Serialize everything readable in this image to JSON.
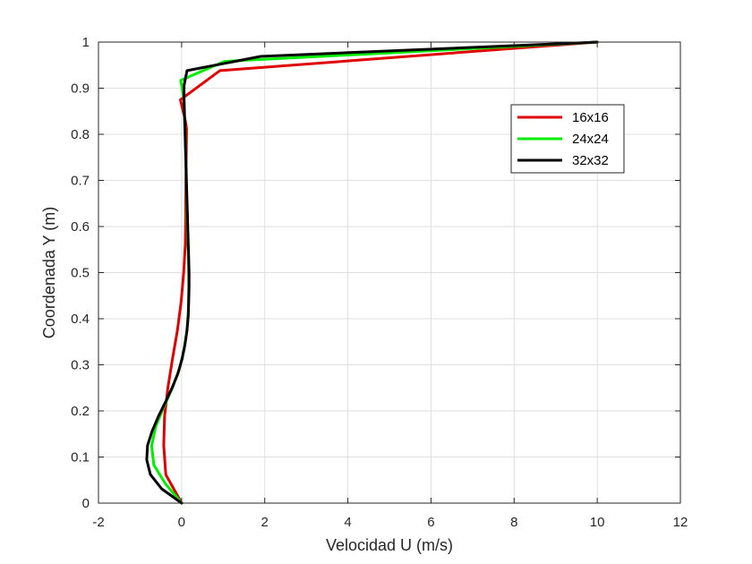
{
  "chart_data": {
    "type": "line",
    "title": "",
    "xlabel": "Velocidad U (m/s)",
    "ylabel": "Coordenada Y (m)",
    "xlim": [
      -2,
      12
    ],
    "ylim": [
      0,
      1
    ],
    "xticks": [
      -2,
      0,
      2,
      4,
      6,
      8,
      10,
      12
    ],
    "yticks": [
      0,
      0.1,
      0.2,
      0.3,
      0.4,
      0.5,
      0.6,
      0.7,
      0.8,
      0.9,
      1
    ],
    "xtick_labels": [
      "-2",
      "0",
      "2",
      "4",
      "6",
      "8",
      "10",
      "12"
    ],
    "ytick_labels": [
      "0",
      "0.1",
      "0.2",
      "0.3",
      "0.4",
      "0.5",
      "0.6",
      "0.7",
      "0.8",
      "0.9",
      "1"
    ],
    "grid": true,
    "legend_position": "top-right",
    "series": [
      {
        "name": "16x16",
        "color": "#e00000",
        "points": [
          [
            0.0,
            0.0
          ],
          [
            -0.38,
            0.062
          ],
          [
            -0.43,
            0.125
          ],
          [
            -0.41,
            0.188
          ],
          [
            -0.33,
            0.25
          ],
          [
            -0.22,
            0.312
          ],
          [
            -0.1,
            0.375
          ],
          [
            -0.01,
            0.438
          ],
          [
            0.05,
            0.5
          ],
          [
            0.09,
            0.562
          ],
          [
            0.1,
            0.625
          ],
          [
            0.1,
            0.688
          ],
          [
            0.11,
            0.75
          ],
          [
            0.12,
            0.812
          ],
          [
            0.09,
            0.83
          ],
          [
            -0.03,
            0.875
          ],
          [
            0.92,
            0.938
          ],
          [
            10.0,
            1.0
          ]
        ]
      },
      {
        "name": "24x24",
        "color": "#00ee00",
        "points": [
          [
            0.0,
            0.0
          ],
          [
            -0.39,
            0.042
          ],
          [
            -0.67,
            0.083
          ],
          [
            -0.72,
            0.125
          ],
          [
            -0.62,
            0.167
          ],
          [
            -0.43,
            0.208
          ],
          [
            -0.22,
            0.25
          ],
          [
            -0.05,
            0.292
          ],
          [
            0.06,
            0.333
          ],
          [
            0.13,
            0.375
          ],
          [
            0.16,
            0.417
          ],
          [
            0.17,
            0.458
          ],
          [
            0.17,
            0.5
          ],
          [
            0.16,
            0.542
          ],
          [
            0.14,
            0.583
          ],
          [
            0.13,
            0.625
          ],
          [
            0.12,
            0.667
          ],
          [
            0.11,
            0.708
          ],
          [
            0.1,
            0.75
          ],
          [
            0.09,
            0.792
          ],
          [
            0.07,
            0.833
          ],
          [
            0.06,
            0.875
          ],
          [
            -0.02,
            0.917
          ],
          [
            1.03,
            0.958
          ],
          [
            10.0,
            1.0
          ]
        ]
      },
      {
        "name": "32x32",
        "color": "#000000",
        "points": [
          [
            0.0,
            0.0
          ],
          [
            -0.48,
            0.031
          ],
          [
            -0.75,
            0.062
          ],
          [
            -0.84,
            0.094
          ],
          [
            -0.82,
            0.125
          ],
          [
            -0.71,
            0.156
          ],
          [
            -0.56,
            0.188
          ],
          [
            -0.39,
            0.219
          ],
          [
            -0.23,
            0.25
          ],
          [
            -0.09,
            0.281
          ],
          [
            0.01,
            0.312
          ],
          [
            0.08,
            0.344
          ],
          [
            0.13,
            0.375
          ],
          [
            0.16,
            0.406
          ],
          [
            0.17,
            0.438
          ],
          [
            0.18,
            0.469
          ],
          [
            0.18,
            0.5
          ],
          [
            0.17,
            0.531
          ],
          [
            0.16,
            0.562
          ],
          [
            0.15,
            0.594
          ],
          [
            0.14,
            0.625
          ],
          [
            0.13,
            0.656
          ],
          [
            0.12,
            0.688
          ],
          [
            0.11,
            0.719
          ],
          [
            0.1,
            0.75
          ],
          [
            0.09,
            0.781
          ],
          [
            0.08,
            0.812
          ],
          [
            0.07,
            0.844
          ],
          [
            0.06,
            0.875
          ],
          [
            0.06,
            0.906
          ],
          [
            0.13,
            0.938
          ],
          [
            1.9,
            0.969
          ],
          [
            10.0,
            1.0
          ]
        ]
      }
    ]
  }
}
